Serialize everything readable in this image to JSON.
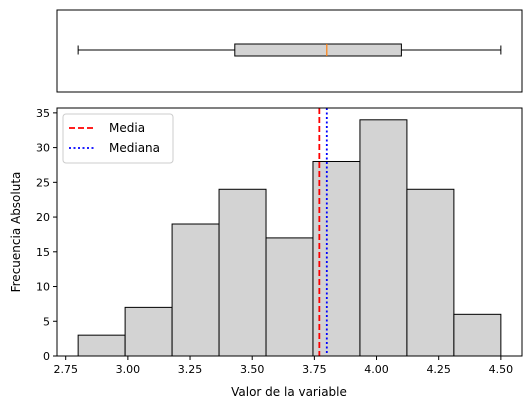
{
  "chart_data": [
    {
      "type": "boxplot",
      "orientation": "horizontal",
      "min": 2.8,
      "q1": 3.43,
      "median": 3.8,
      "q3": 4.1,
      "max": 4.5,
      "box_color": "#d3d3d3",
      "median_color": "#ff7f0e",
      "xlim": [
        2.715,
        4.585
      ],
      "axis_ticks_shown": false
    },
    {
      "type": "histogram",
      "bin_edges": [
        2.8,
        2.9889,
        3.1778,
        3.3667,
        3.5556,
        3.7444,
        3.9333,
        4.1222,
        4.3111,
        4.5
      ],
      "counts": [
        3,
        7,
        19,
        24,
        17,
        28,
        34,
        24,
        6
      ],
      "bar_color": "#d3d3d3",
      "xlabel": "Valor de la variable",
      "ylabel": "Frecuencia Absoluta",
      "xlim": [
        2.715,
        4.585
      ],
      "ylim": [
        0,
        35.7
      ],
      "xticks": [
        2.75,
        3.0,
        3.25,
        3.5,
        3.75,
        4.0,
        4.25,
        4.5
      ],
      "xtick_labels": [
        "2.75",
        "3.00",
        "3.25",
        "3.50",
        "3.75",
        "4.00",
        "4.25",
        "4.50"
      ],
      "yticks": [
        0,
        5,
        10,
        15,
        20,
        25,
        30,
        35
      ],
      "ytick_labels": [
        "0",
        "5",
        "10",
        "15",
        "20",
        "25",
        "30",
        "35"
      ],
      "reference_lines": [
        {
          "name": "Media",
          "x": 3.77,
          "color": "#ff0000",
          "style": "dashed"
        },
        {
          "name": "Mediana",
          "x": 3.8,
          "color": "#0000ff",
          "style": "dotted"
        }
      ],
      "legend": [
        "Media",
        "Mediana"
      ],
      "legend_location": "upper left"
    }
  ]
}
